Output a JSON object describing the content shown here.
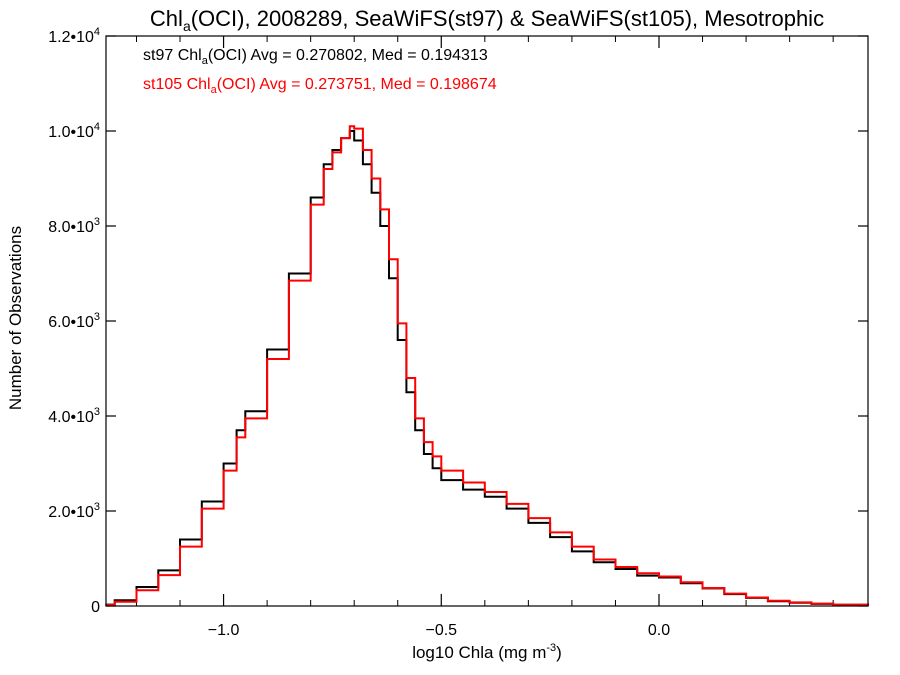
{
  "chart_data": {
    "type": "line",
    "title": {
      "pre": "Chl",
      "sub": "a",
      "post": "(OCI), 2008289, SeaWiFS(st97) & SeaWiFS(st105), Mesotrophic"
    },
    "xlabel": {
      "pre": "log10 Chla (mg m",
      "sup": "-3",
      "post": ")"
    },
    "ylabel": "Number of Observations",
    "xlim": [
      -1.27,
      0.48
    ],
    "ylim": [
      0,
      12000
    ],
    "x_ticks": [
      {
        "value": -1.0,
        "label": "−1.0"
      },
      {
        "value": -0.5,
        "label": "−0.5"
      },
      {
        "value": 0.0,
        "label": "0.0"
      }
    ],
    "y_ticks": [
      {
        "value": 0,
        "mant": "0",
        "exp": ""
      },
      {
        "value": 2000,
        "mant": "2.0•10",
        "exp": "3"
      },
      {
        "value": 4000,
        "mant": "4.0•10",
        "exp": "3"
      },
      {
        "value": 6000,
        "mant": "6.0•10",
        "exp": "3"
      },
      {
        "value": 8000,
        "mant": "8.0•10",
        "exp": "3"
      },
      {
        "value": 10000,
        "mant": "1.0•10",
        "exp": "4"
      },
      {
        "value": 12000,
        "mant": "1.2•10",
        "exp": "4"
      }
    ],
    "legend_placement": "top-left",
    "series": [
      {
        "name": "st97",
        "color": "#000000",
        "stats": {
          "pre": "st97 Chl",
          "sub": "a",
          "post": "(OCI) Avg = 0.270802, Med = 0.194313"
        },
        "x": [
          -1.27,
          -1.25,
          -1.2,
          -1.15,
          -1.1,
          -1.05,
          -1.0,
          -0.97,
          -0.95,
          -0.9,
          -0.85,
          -0.8,
          -0.77,
          -0.75,
          -0.73,
          -0.71,
          -0.7,
          -0.68,
          -0.66,
          -0.64,
          -0.62,
          -0.6,
          -0.58,
          -0.56,
          -0.54,
          -0.52,
          -0.5,
          -0.45,
          -0.4,
          -0.35,
          -0.3,
          -0.25,
          -0.2,
          -0.15,
          -0.1,
          -0.05,
          0.0,
          0.05,
          0.1,
          0.15,
          0.2,
          0.25,
          0.3,
          0.35,
          0.4,
          0.48
        ],
        "y": [
          30,
          120,
          400,
          750,
          1400,
          2200,
          3000,
          3700,
          4100,
          5400,
          7000,
          8600,
          9300,
          9600,
          9850,
          10000,
          9800,
          9300,
          8700,
          8000,
          6900,
          5600,
          4500,
          3700,
          3200,
          2900,
          2650,
          2450,
          2300,
          2050,
          1750,
          1450,
          1150,
          920,
          780,
          640,
          600,
          480,
          370,
          250,
          170,
          100,
          70,
          45,
          25,
          10
        ]
      },
      {
        "name": "st105",
        "color": "#ff0000",
        "stats": {
          "pre": "st105 Chl",
          "sub": "a",
          "post": "(OCI) Avg = 0.273751, Med = 0.198674"
        },
        "x": [
          -1.27,
          -1.25,
          -1.2,
          -1.15,
          -1.1,
          -1.05,
          -1.0,
          -0.97,
          -0.95,
          -0.9,
          -0.85,
          -0.8,
          -0.77,
          -0.75,
          -0.73,
          -0.71,
          -0.7,
          -0.68,
          -0.66,
          -0.64,
          -0.62,
          -0.6,
          -0.58,
          -0.56,
          -0.54,
          -0.52,
          -0.5,
          -0.45,
          -0.4,
          -0.35,
          -0.3,
          -0.25,
          -0.2,
          -0.15,
          -0.1,
          -0.05,
          0.0,
          0.05,
          0.1,
          0.15,
          0.2,
          0.25,
          0.3,
          0.35,
          0.4,
          0.48
        ],
        "y": [
          20,
          90,
          330,
          650,
          1250,
          2050,
          2850,
          3550,
          3950,
          5200,
          6850,
          8450,
          9200,
          9550,
          9850,
          10100,
          10050,
          9600,
          9000,
          8350,
          7300,
          5950,
          4800,
          3950,
          3450,
          3150,
          2850,
          2600,
          2400,
          2150,
          1850,
          1550,
          1250,
          980,
          820,
          690,
          620,
          500,
          380,
          260,
          180,
          110,
          75,
          50,
          28,
          12
        ]
      }
    ]
  }
}
